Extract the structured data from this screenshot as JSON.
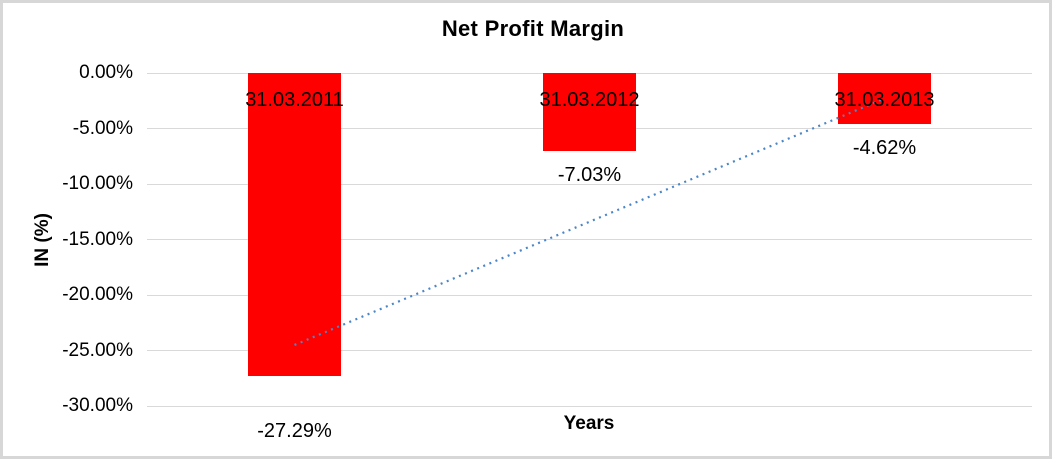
{
  "chart": {
    "title": "Net Profit Margin",
    "y_axis_title": "IN (%)",
    "x_axis_title": "Years"
  },
  "chart_data": {
    "type": "bar",
    "title": "Net Profit Margin",
    "xlabel": "Years",
    "ylabel": "IN (%)",
    "categories": [
      "31.03.2011",
      "31.03.2012",
      "31.03.2013"
    ],
    "values": [
      -27.29,
      -7.03,
      -4.62
    ],
    "data_labels": [
      "-27.29%",
      "-7.03%",
      "-4.62%"
    ],
    "yticks": [
      {
        "value": 0,
        "label": "0.00%"
      },
      {
        "value": -5,
        "label": "-5.00%"
      },
      {
        "value": -10,
        "label": "-10.00%"
      },
      {
        "value": -15,
        "label": "-15.00%"
      },
      {
        "value": -20,
        "label": "-20.00%"
      },
      {
        "value": -25,
        "label": "-25.00%"
      },
      {
        "value": -30,
        "label": "-30.00%"
      }
    ],
    "ylim": [
      -30,
      0
    ],
    "grid": true,
    "legend": "none",
    "bar_color": "#ff0000",
    "gridline_color": "#d9d9d9",
    "trendline": {
      "type": "linear",
      "style": "dotted",
      "color": "#4a86c8",
      "start": {
        "category_index": 0,
        "value": -24.5
      },
      "end": {
        "category_index": 2,
        "value": -2.3
      }
    }
  }
}
